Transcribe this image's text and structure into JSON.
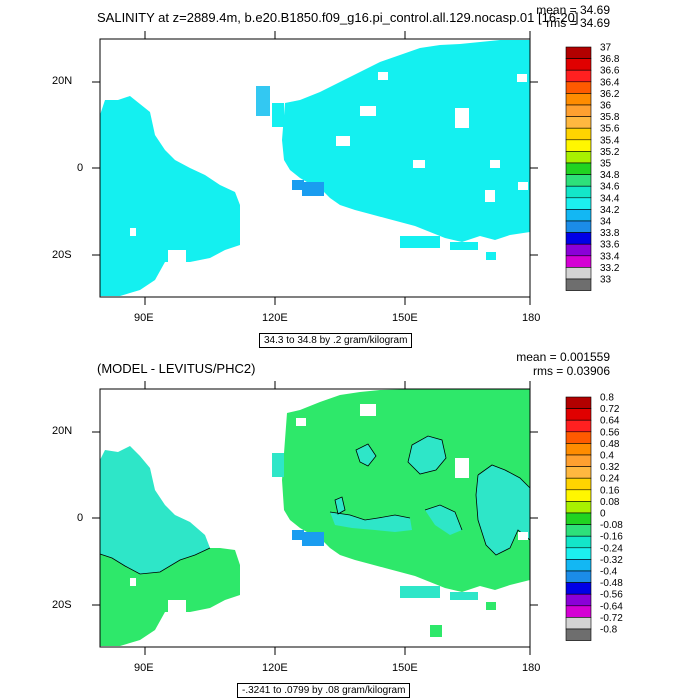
{
  "panels": [
    {
      "title": "SALINITY at z=2889.4m, b.e20.B1850.f09_g16.pi_control.all.129.nocasp.01 [16-20]",
      "mean": "mean = 34.69",
      "rms": "rms = 34.69",
      "info": "34.3 to 34.8 by .2 gram/kilogram",
      "x_ticks": [
        "90E",
        "120E",
        "150E",
        "180"
      ],
      "y_ticks": [
        "20N",
        "0",
        "20S"
      ],
      "colorbar": {
        "labels": [
          "37",
          "36.8",
          "36.6",
          "36.4",
          "36.2",
          "36",
          "35.8",
          "35.6",
          "35.4",
          "35.2",
          "35",
          "34.8",
          "34.6",
          "34.4",
          "34.2",
          "34",
          "33.8",
          "33.6",
          "33.4",
          "33.2",
          "33"
        ],
        "colors": [
          "#b20000",
          "#e00000",
          "#ff2020",
          "#ff5a00",
          "#ff8c00",
          "#ffa030",
          "#ffb840",
          "#ffd400",
          "#fff700",
          "#a8f000",
          "#21d321",
          "#2ee07a",
          "#13e6c9",
          "#1cf0f0",
          "#13b7f3",
          "#1b8ce8",
          "#0000e6",
          "#8a00d8",
          "#d400d4",
          "#d3d3d3",
          "#6e6e6e"
        ]
      }
    },
    {
      "title": "(MODEL - LEVITUS/PHC2)",
      "mean": "mean = 0.001559",
      "rms": "rms = 0.03906",
      "info": "-.3241 to .0799 by .08 gram/kilogram",
      "x_ticks": [
        "90E",
        "120E",
        "150E",
        "180"
      ],
      "y_ticks": [
        "20N",
        "0",
        "20S"
      ],
      "colorbar": {
        "labels": [
          "0.8",
          "0.72",
          "0.64",
          "0.56",
          "0.48",
          "0.4",
          "0.32",
          "0.24",
          "0.16",
          "0.08",
          "0",
          "-0.08",
          "-0.16",
          "-0.24",
          "-0.32",
          "-0.4",
          "-0.48",
          "-0.56",
          "-0.64",
          "-0.72",
          "-0.8"
        ],
        "colors": [
          "#b20000",
          "#e00000",
          "#ff2020",
          "#ff5a00",
          "#ff8c00",
          "#ffa030",
          "#ffb840",
          "#ffd400",
          "#fff700",
          "#a8f000",
          "#21d321",
          "#2ee07a",
          "#13e6c9",
          "#1cf0f0",
          "#13b7f3",
          "#1b8ce8",
          "#0000e6",
          "#8a00d8",
          "#d400d4",
          "#d3d3d3",
          "#6e6e6e"
        ]
      }
    }
  ],
  "colors": {
    "cyan_fill": "#14f0f0",
    "blue_fill": "#1a9df0",
    "light_blue_fill": "#33c8f2",
    "green_fill": "#2ee86a",
    "teal_fill": "#2ee6c8"
  }
}
